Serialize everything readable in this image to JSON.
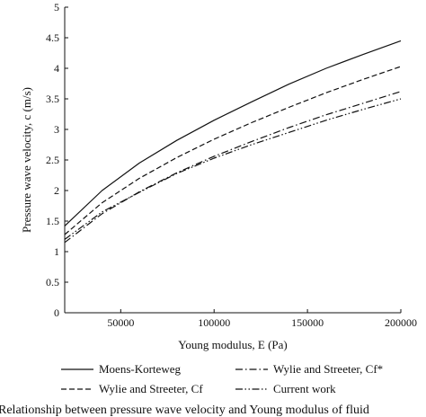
{
  "chart_data": {
    "type": "line",
    "title": "",
    "xlabel": "Young modulus, E (Pa)",
    "ylabel": "Pressure wave velocity, c (m/s)",
    "xlim": [
      20000,
      200000
    ],
    "ylim": [
      0,
      5
    ],
    "x_ticks": [
      "50000",
      "100000",
      "150000",
      "200000"
    ],
    "y_ticks": [
      "0",
      "0.5",
      "1",
      "1.5",
      "2",
      "2.5",
      "3",
      "3.5",
      "4",
      "4.5",
      "5"
    ],
    "grid": false,
    "legend_position": "bottom",
    "x": [
      20000,
      40000,
      60000,
      80000,
      100000,
      120000,
      140000,
      160000,
      180000,
      200000
    ],
    "series": [
      {
        "name": "Moens-Korteweg",
        "style": "solid",
        "values": [
          1.42,
          2.0,
          2.45,
          2.82,
          3.15,
          3.45,
          3.74,
          4.0,
          4.23,
          4.45
        ]
      },
      {
        "name": "Wylie and Streeter, Cf",
        "style": "dashed",
        "values": [
          1.28,
          1.8,
          2.2,
          2.54,
          2.84,
          3.11,
          3.36,
          3.6,
          3.82,
          4.03
        ]
      },
      {
        "name": "Wylie and Streeter, Cf*",
        "style": "dashdot",
        "values": [
          1.15,
          1.62,
          1.98,
          2.29,
          2.56,
          2.8,
          3.03,
          3.24,
          3.43,
          3.62
        ]
      },
      {
        "name": "Current work",
        "style": "dashdotdot",
        "values": [
          1.2,
          1.65,
          1.97,
          2.28,
          2.53,
          2.75,
          2.95,
          3.15,
          3.33,
          3.5
        ]
      }
    ]
  },
  "caption": "Relationship between pressure wave velocity and Young modulus of fluid"
}
